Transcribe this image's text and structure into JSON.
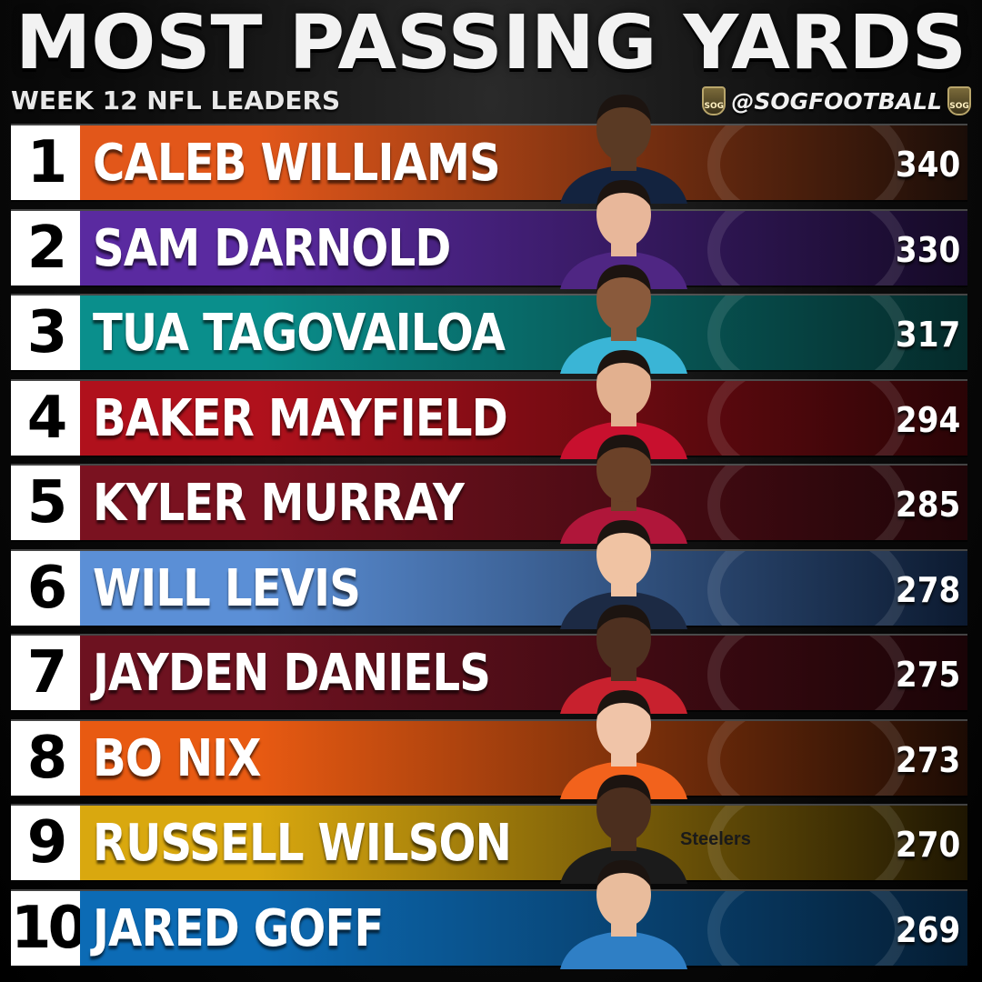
{
  "header": {
    "title": "MOST PASSING YARDS",
    "subtitle": "WEEK 12 NFL LEADERS",
    "brand_handle": "@SOGFOOTBALL",
    "brand_badge_text": "SOG"
  },
  "chart_data": {
    "type": "table",
    "title": "MOST PASSING YARDS",
    "subtitle": "WEEK 12 NFL LEADERS",
    "columns": [
      "rank",
      "player",
      "passing_yards"
    ],
    "rows": [
      {
        "rank": "1",
        "player": "CALEB WILLIAMS",
        "yards": 340,
        "color_start": "#e2571a",
        "color_end": "#1a0d08",
        "jersey": "#13233f",
        "skin": "#5a3a24"
      },
      {
        "rank": "2",
        "player": "SAM DARNOLD",
        "yards": 330,
        "color_start": "#5a2aa0",
        "color_end": "#150a26",
        "jersey": "#4f2683",
        "skin": "#e8b79a"
      },
      {
        "rank": "3",
        "player": "TUA TAGOVAILOA",
        "yards": 317,
        "color_start": "#0a8f8c",
        "color_end": "#052a2a",
        "jersey": "#3ab5d6",
        "skin": "#8a5a3c"
      },
      {
        "rank": "4",
        "player": "BAKER MAYFIELD",
        "yards": 294,
        "color_start": "#b0111c",
        "color_end": "#2a0406",
        "jersey": "#c8102e",
        "skin": "#e2b08f"
      },
      {
        "rank": "5",
        "player": "KYLER MURRAY",
        "yards": 285,
        "color_start": "#7a1220",
        "color_end": "#1e0508",
        "jersey": "#b0163a",
        "skin": "#6b4128"
      },
      {
        "rank": "6",
        "player": "WILL LEVIS",
        "yards": 278,
        "color_start": "#5b8fd6",
        "color_end": "#0c1a30",
        "jersey": "#1c2a44",
        "skin": "#f0c3a3"
      },
      {
        "rank": "7",
        "player": "JAYDEN DANIELS",
        "yards": 275,
        "color_start": "#6d1220",
        "color_end": "#1a0407",
        "jersey": "#c8212e",
        "skin": "#4e3020"
      },
      {
        "rank": "8",
        "player": "BO NIX",
        "yards": 273,
        "color_start": "#e85a12",
        "color_end": "#1c0b04",
        "jersey": "#f2621c",
        "skin": "#f0c4a8"
      },
      {
        "rank": "9",
        "player": "RUSSELL WILSON",
        "yards": 270,
        "color_start": "#d9a80f",
        "color_end": "#1e1602",
        "jersey": "#1b1b1b",
        "skin": "#4b2e1e"
      },
      {
        "rank": "10",
        "player": "JARED GOFF",
        "yards": 269,
        "color_start": "#0c6bb5",
        "color_end": "#051d33",
        "jersey": "#2f7fc5",
        "skin": "#e9bc9c"
      }
    ],
    "team_logo_text": {
      "9": "Steelers"
    }
  }
}
